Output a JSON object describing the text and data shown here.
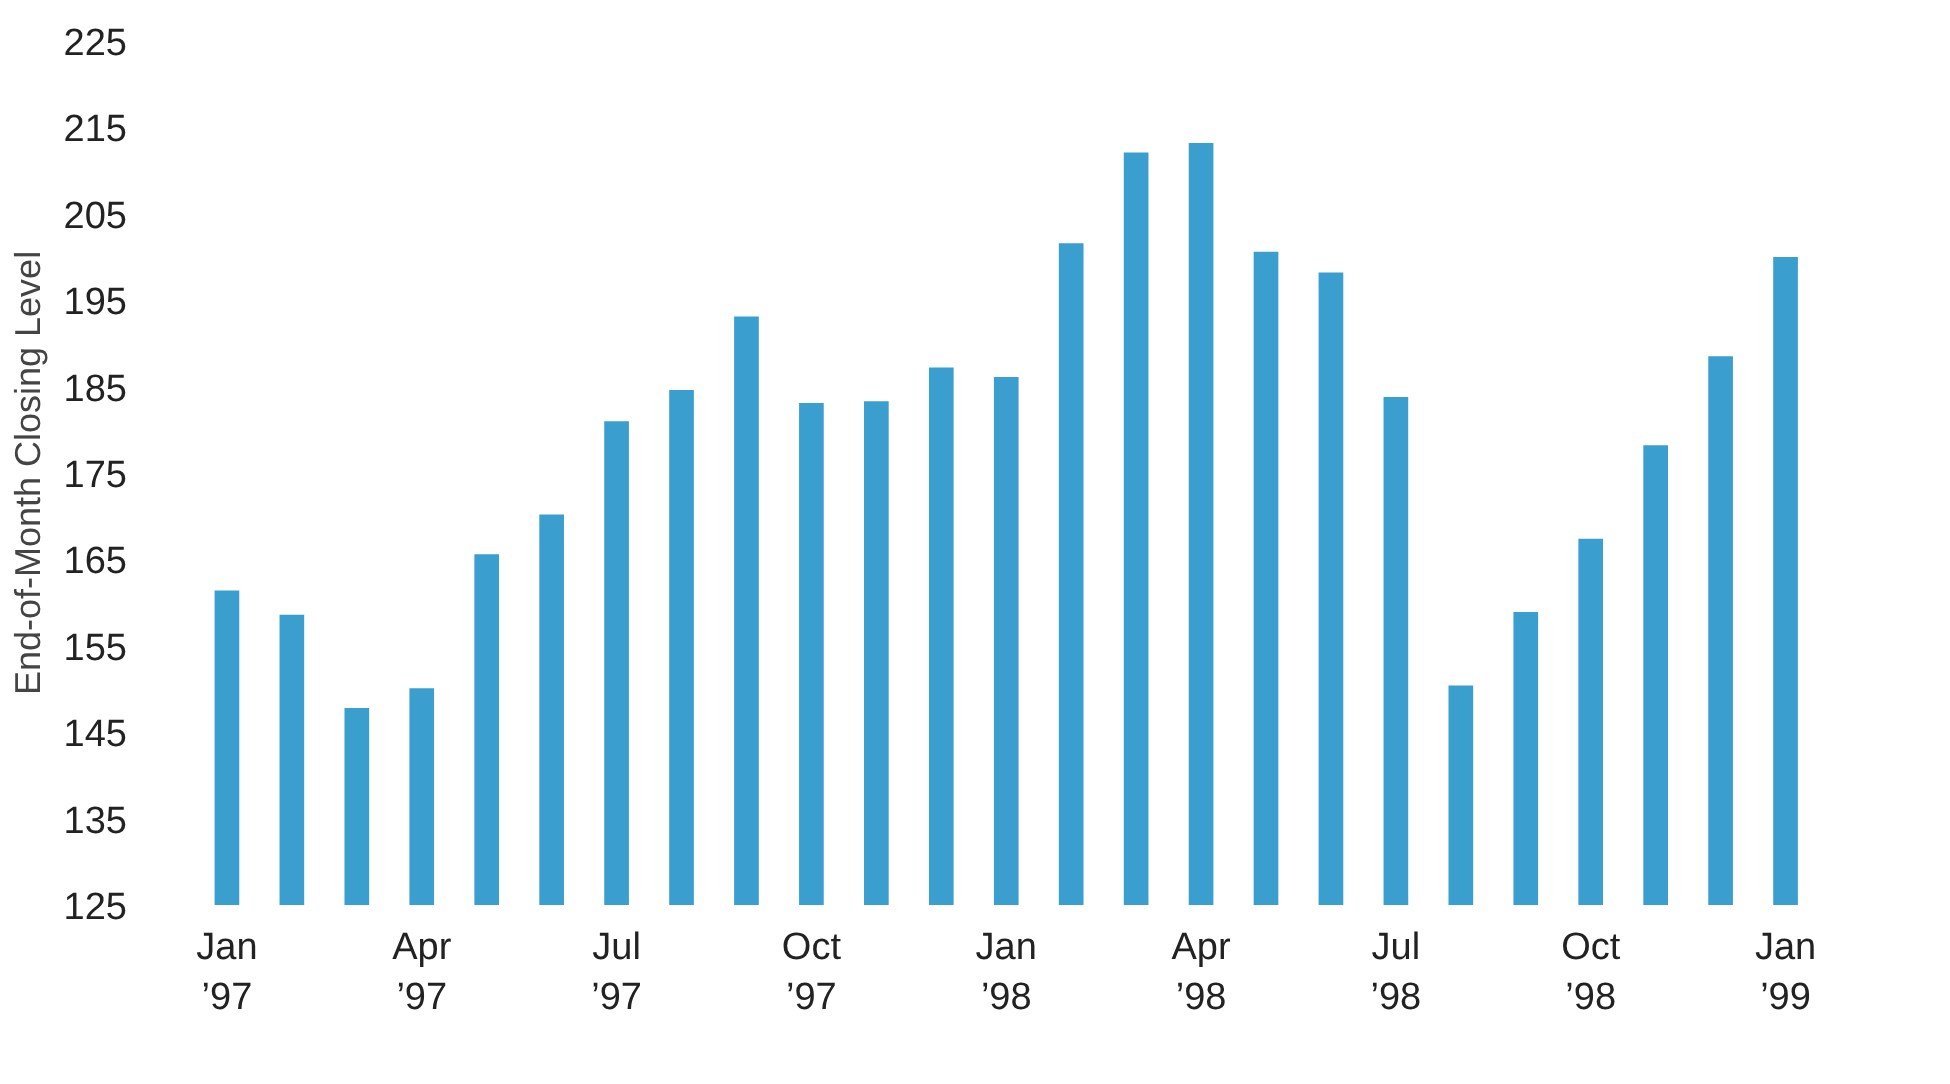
{
  "chart_data": {
    "type": "bar",
    "ylabel": "End-of-Month Closing Level",
    "categories": [
      "Jan\n’97",
      null,
      null,
      "Apr\n’97",
      null,
      null,
      "Jul\n’97",
      null,
      null,
      "Oct\n’97",
      null,
      null,
      "Jan\n’98",
      null,
      null,
      "Apr\n’98",
      null,
      null,
      "Jul\n’98",
      null,
      null,
      "Oct\n’98",
      null,
      null,
      "Jan\n’99"
    ],
    "values": [
      161.4,
      158.6,
      147.8,
      150.1,
      165.6,
      170.2,
      181,
      184.6,
      193.1,
      183.1,
      183.3,
      187.2,
      186.1,
      201.6,
      212.1,
      213.2,
      200.6,
      198.2,
      183.8,
      150.4,
      158.9,
      167.4,
      178.2,
      188.5,
      200
    ],
    "color": "#3a9fcf",
    "ylim": [
      125,
      225
    ],
    "yticks": [
      125,
      135,
      145,
      155,
      165,
      175,
      185,
      195,
      205,
      215,
      225
    ],
    "grid": false
  }
}
